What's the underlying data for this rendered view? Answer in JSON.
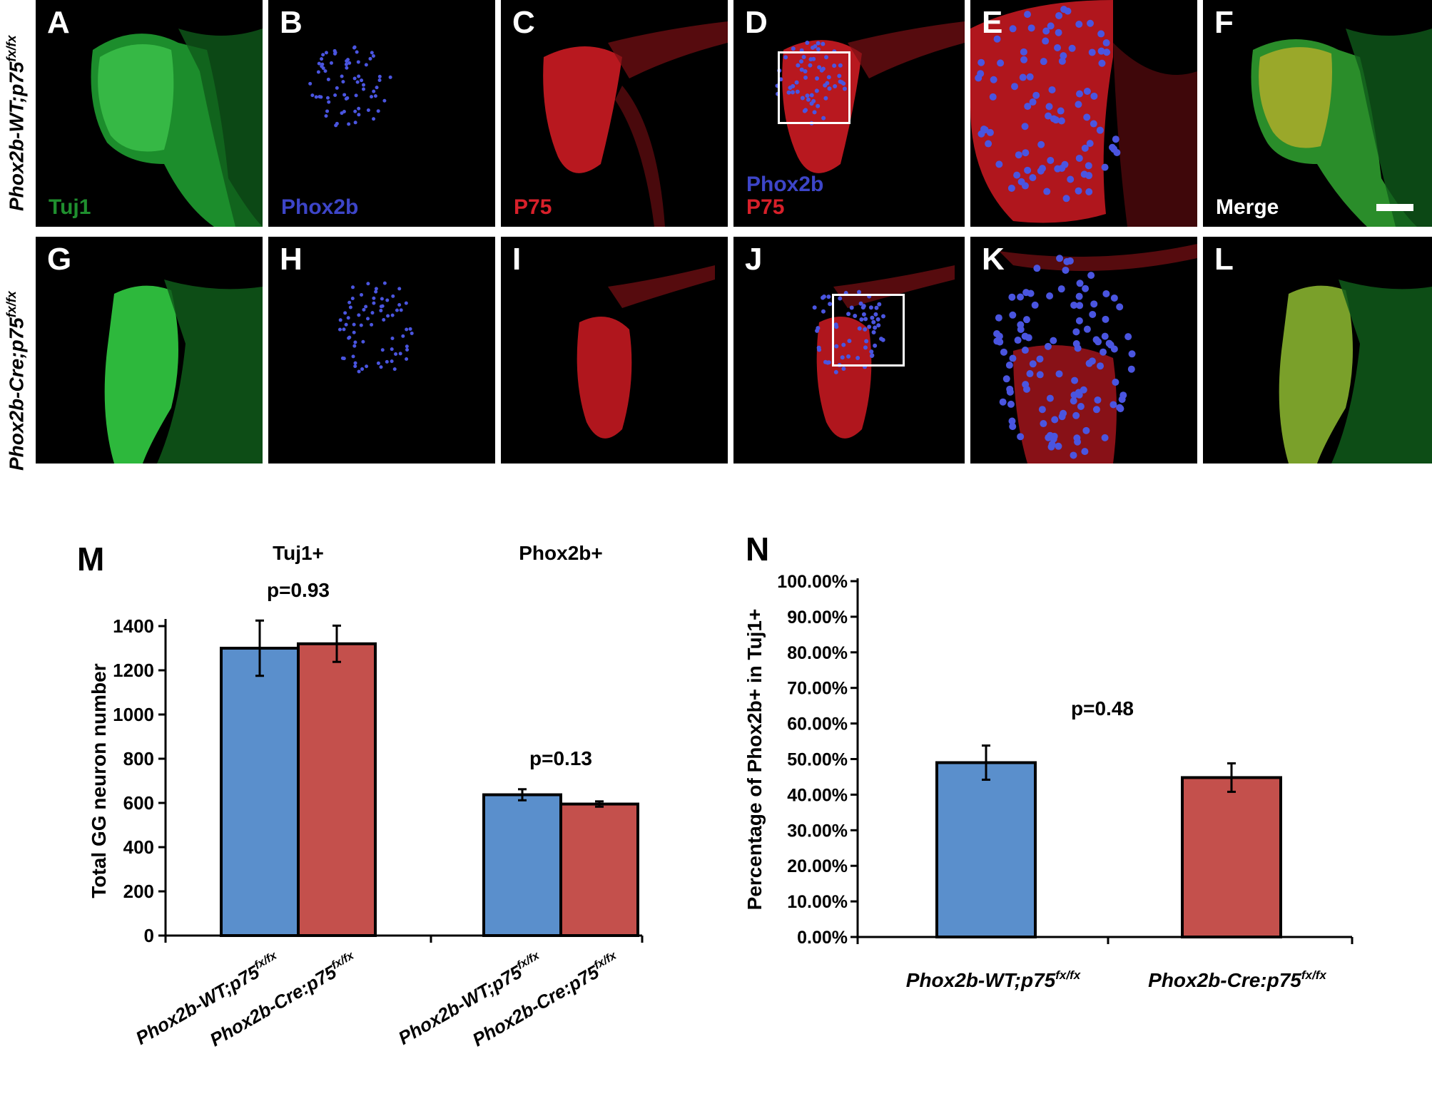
{
  "figure": {
    "row_labels": [
      {
        "main": "Phox2b-WT;p75",
        "sup": "fx/fx"
      },
      {
        "main": "Phox2b-Cre;p75",
        "sup": "fx/fx"
      }
    ],
    "panels_top": [
      {
        "letter": "A",
        "channel": [
          "Tuj1"
        ],
        "channel_colors": [
          "#1f8f2e"
        ]
      },
      {
        "letter": "B",
        "channel": [
          "Phox2b"
        ],
        "channel_colors": [
          "#3d45c8"
        ]
      },
      {
        "letter": "C",
        "channel": [
          "P75"
        ],
        "channel_colors": [
          "#d8202a"
        ]
      },
      {
        "letter": "D",
        "channel": [
          "Phox2b",
          "P75"
        ],
        "channel_colors": [
          "#3d45c8",
          "#d8202a"
        ]
      },
      {
        "letter": "E",
        "channel": [],
        "channel_colors": []
      },
      {
        "letter": "F",
        "channel": [
          "Merge"
        ],
        "channel_colors": [
          "#ffffff"
        ]
      }
    ],
    "panels_bottom": [
      {
        "letter": "G"
      },
      {
        "letter": "H"
      },
      {
        "letter": "I"
      },
      {
        "letter": "J"
      },
      {
        "letter": "K"
      },
      {
        "letter": "L"
      }
    ],
    "colors": {
      "wt": "#5a8fcc",
      "cre": "#c4504c",
      "green": "#3fc34a",
      "blue": "#4a55e0",
      "red": "#e0262a"
    }
  },
  "chart_data": [
    {
      "panel": "M",
      "type": "bar",
      "ylabel": "Total GG neuron number",
      "ylim": [
        0,
        1400
      ],
      "yticks": [
        0,
        200,
        400,
        600,
        800,
        1000,
        1200,
        1400
      ],
      "groups": [
        {
          "name": "Tuj1+",
          "pvalue": "p=0.93",
          "bars": [
            {
              "label": "Phox2b-WT;p75",
              "sup": "fx/fx",
              "value": 1300,
              "error": 125
            },
            {
              "label": "Phox2b-Cre:p75",
              "sup": "fx/fx",
              "value": 1320,
              "error": 82
            }
          ]
        },
        {
          "name": "Phox2b+",
          "pvalue": "p=0.13",
          "bars": [
            {
              "label": "Phox2b-WT;p75",
              "sup": "fx/fx",
              "value": 637,
              "error": 25
            },
            {
              "label": "Phox2b-Cre:p75",
              "sup": "fx/fx",
              "value": 595,
              "error": 12
            }
          ]
        }
      ]
    },
    {
      "panel": "N",
      "type": "bar",
      "ylabel": "Percentage of Phox2b+ in Tuj1+",
      "ylim": [
        0,
        1.0
      ],
      "yticks": [
        "0.00%",
        "10.00%",
        "20.00%",
        "30.00%",
        "40.00%",
        "50.00%",
        "60.00%",
        "70.00%",
        "80.00%",
        "90.00%",
        "100.00%"
      ],
      "pvalue": "p=0.48",
      "bars": [
        {
          "label": "Phox2b-WT;p75",
          "sup": "fx/fx",
          "value": 0.49,
          "error": 0.048
        },
        {
          "label": "Phox2b-Cre:p75",
          "sup": "fx/fx",
          "value": 0.448,
          "error": 0.04
        }
      ]
    }
  ]
}
